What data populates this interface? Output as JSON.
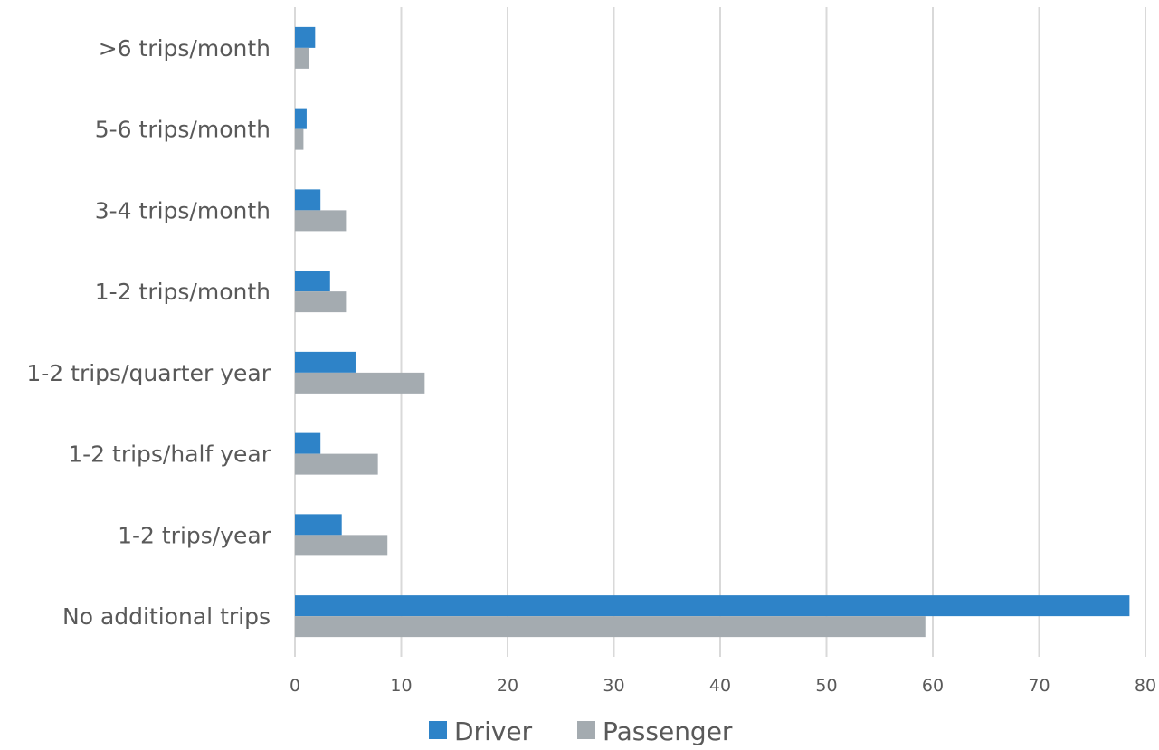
{
  "chart_data": {
    "type": "bar",
    "orientation": "horizontal",
    "categories": [
      "No additional trips",
      "1-2 trips/year",
      "1-2 trips/half year",
      "1-2 trips/quarter year",
      "1-2 trips/month",
      "3-4 trips/month",
      "5-6 trips/month",
      ">6 trips/month"
    ],
    "series": [
      {
        "name": "Driver",
        "color": "#2e83c8",
        "values": [
          78.5,
          4.4,
          2.4,
          5.7,
          3.3,
          2.4,
          1.1,
          1.9
        ]
      },
      {
        "name": "Passenger",
        "color": "#a4abb0",
        "values": [
          59.3,
          8.7,
          7.8,
          12.2,
          4.8,
          4.8,
          0.8,
          1.3
        ]
      }
    ],
    "xlim": [
      0,
      80
    ],
    "xticks": [
      "0",
      "10",
      "20",
      "30",
      "40",
      "50",
      "60",
      "70",
      "80"
    ],
    "grid": "vertical",
    "legend": "bottom-center"
  }
}
